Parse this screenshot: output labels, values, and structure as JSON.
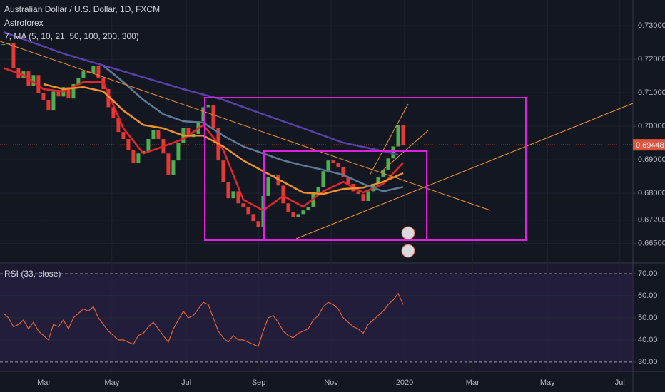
{
  "chart_data": [
    {
      "type": "candlestick",
      "title": "Australian Dollar / U.S. Dollar, 1D, FXCM",
      "subtitle": "Astroforex",
      "indicator": "7, MA (5, 10, 21, 50, 100, 200, 300)",
      "up_color": "#4caf50",
      "down_color": "#e53935",
      "xlim": [
        -0.7,
        126
      ],
      "xticks": [
        {
          "value": 8.1,
          "label": "Mar"
        },
        {
          "value": 21.7,
          "label": "May"
        },
        {
          "value": 36.6,
          "label": "Jul"
        },
        {
          "value": 51.1,
          "label": "Sep"
        },
        {
          "value": 65.6,
          "label": "Nov"
        },
        {
          "value": 80.3,
          "label": "2020"
        },
        {
          "value": 93.9,
          "label": "Mar"
        },
        {
          "value": 108.9,
          "label": "May"
        },
        {
          "value": 123.4,
          "label": "Jul"
        }
      ],
      "ylim": [
        0.6594,
        0.7377
      ],
      "yticks": [
        {
          "value": 0.73,
          "label": "0.73000"
        },
        {
          "value": 0.72,
          "label": "0.72000"
        },
        {
          "value": 0.71,
          "label": "0.71000"
        },
        {
          "value": 0.7,
          "label": "0.70000"
        },
        {
          "value": 0.69,
          "label": "0.69000"
        },
        {
          "value": 0.68,
          "label": "0.68000"
        },
        {
          "value": 0.672,
          "label": "0.67200"
        },
        {
          "value": 0.665,
          "label": "0.66500"
        }
      ],
      "last_price": 0.69448,
      "last_price_color": "#e0523a",
      "close": [
        0.7245,
        0.7249,
        0.7174,
        0.7143,
        0.7164,
        0.7121,
        0.7153,
        0.71,
        0.7079,
        0.7047,
        0.7104,
        0.7089,
        0.7117,
        0.7083,
        0.7126,
        0.7143,
        0.7164,
        0.716,
        0.7181,
        0.7143,
        0.7111,
        0.7057,
        0.7026,
        0.6983,
        0.6962,
        0.693,
        0.6891,
        0.6919,
        0.6926,
        0.6962,
        0.6989,
        0.6962,
        0.6919,
        0.6855,
        0.6898,
        0.6951,
        0.6994,
        0.6968,
        0.6977,
        0.7015,
        0.7057,
        0.7062,
        0.6994,
        0.6898,
        0.6834,
        0.6785,
        0.6806,
        0.677,
        0.676,
        0.6738,
        0.6717,
        0.67,
        0.6792,
        0.6849,
        0.6855,
        0.6823,
        0.677,
        0.6743,
        0.6728,
        0.6738,
        0.6749,
        0.676,
        0.6802,
        0.6819,
        0.6866,
        0.6898,
        0.6891,
        0.6877,
        0.6849,
        0.6828,
        0.6806,
        0.6798,
        0.6777,
        0.6806,
        0.6828,
        0.6849,
        0.687,
        0.6904,
        0.694,
        0.7004,
        0.6945
      ],
      "series": [
        {
          "color": "#e5262b",
          "x": [
            0,
            4,
            8,
            12,
            16,
            20,
            24,
            28,
            32,
            36,
            40,
            44,
            48,
            52,
            56,
            60,
            64,
            68,
            72,
            76,
            80
          ],
          "values": [
            0.7174,
            0.7153,
            0.7111,
            0.7104,
            0.7132,
            0.7132,
            0.6994,
            0.6919,
            0.694,
            0.6962,
            0.7004,
            0.693,
            0.6781,
            0.6749,
            0.6792,
            0.676,
            0.6806,
            0.6834,
            0.6802,
            0.6828,
            0.6891
          ]
        },
        {
          "color": "#f0932b",
          "x": [
            8,
            12,
            16,
            20,
            24,
            28,
            32,
            36,
            40,
            44,
            48,
            52,
            56,
            60,
            64,
            68,
            72,
            76,
            80
          ],
          "values": [
            0.7126,
            0.7111,
            0.7117,
            0.7104,
            0.7047,
            0.7004,
            0.6994,
            0.6972,
            0.6972,
            0.694,
            0.6898,
            0.6866,
            0.6834,
            0.6802,
            0.6798,
            0.6813,
            0.6817,
            0.6834,
            0.686
          ]
        },
        {
          "color": "#5d7a96",
          "x": [
            20,
            24,
            28,
            32,
            36,
            40,
            44,
            48,
            52,
            56,
            60,
            64,
            68,
            72,
            76,
            80
          ],
          "values": [
            0.7181,
            0.7132,
            0.7079,
            0.7036,
            0.7015,
            0.7011,
            0.6972,
            0.694,
            0.6919,
            0.6898,
            0.6883,
            0.687,
            0.6855,
            0.6828,
            0.6806,
            0.6819
          ]
        },
        {
          "color": "#5b3fa8",
          "x": [
            0,
            12,
            24,
            36,
            44,
            52,
            60,
            68,
            76,
            79
          ],
          "values": [
            0.7281,
            0.7217,
            0.7164,
            0.7111,
            0.7079,
            0.7036,
            0.6994,
            0.6951,
            0.6926,
            0.6915
          ]
        }
      ]
    },
    {
      "type": "line",
      "title": "RSI (33, close)",
      "color": "#e0622f",
      "band_color": "#2a2244",
      "ylim": [
        26.1,
        74.5
      ],
      "yticks": [
        {
          "value": 70,
          "label": "70.00"
        },
        {
          "value": 60,
          "label": "60.00"
        },
        {
          "value": 50,
          "label": "50.00"
        },
        {
          "value": 40,
          "label": "40.00"
        },
        {
          "value": 30,
          "label": "30.00"
        }
      ],
      "values": [
        52,
        50,
        46,
        47,
        49,
        45,
        48,
        44,
        42,
        40,
        47,
        46,
        49,
        45,
        50,
        52,
        54,
        53,
        55,
        50,
        47,
        44,
        42,
        40,
        40,
        39,
        38,
        42,
        43,
        46,
        48,
        45,
        42,
        39,
        45,
        49,
        53,
        50,
        51,
        54,
        57,
        56,
        50,
        44,
        41,
        39,
        42,
        40,
        40,
        39,
        38,
        37,
        44,
        50,
        51,
        48,
        44,
        42,
        41,
        43,
        44,
        45,
        49,
        51,
        55,
        57,
        56,
        54,
        50,
        48,
        46,
        45,
        43,
        47,
        49,
        51,
        53,
        56,
        58,
        61,
        56
      ]
    }
  ]
}
